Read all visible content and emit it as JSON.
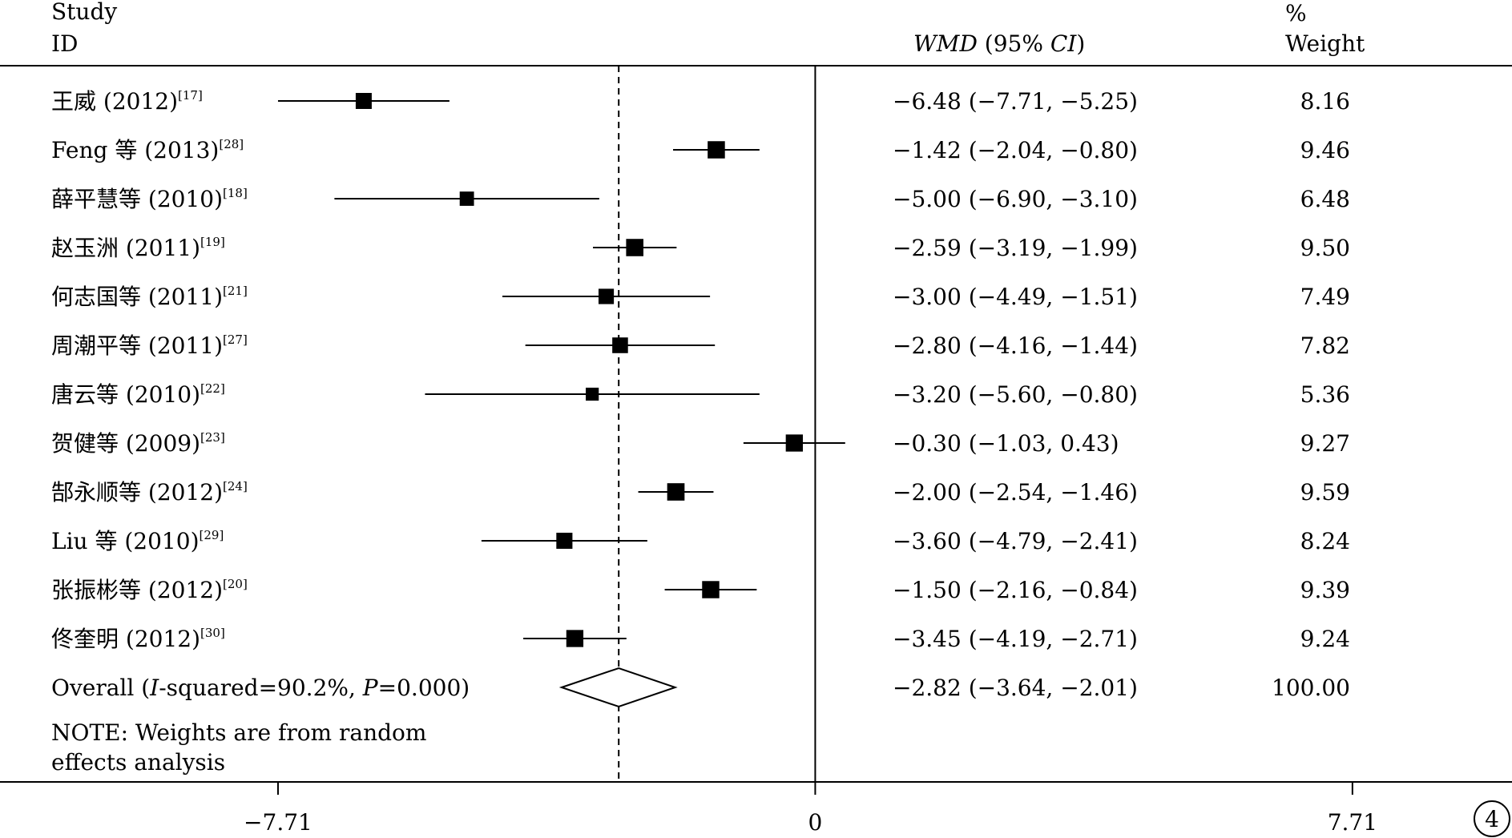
{
  "header": {
    "study_line1": "Study",
    "study_line2": "ID",
    "effect_prefix": "WMD",
    "effect_mid": " (95% ",
    "effect_ci": "CI",
    "effect_suffix": ")",
    "weight_line1": "%",
    "weight_line2": "Weight"
  },
  "note": {
    "line1": "NOTE: Weights are from random",
    "line2": "effects analysis"
  },
  "panel_number": "4",
  "chart_data": {
    "type": "forest",
    "xaxis": {
      "min": -11.7,
      "max": 10.0,
      "ticks": [
        {
          "value": -7.71,
          "label": "−7.71"
        },
        {
          "value": 0,
          "label": "0"
        },
        {
          "value": 7.71,
          "label": "7.71"
        }
      ],
      "null_line": 0,
      "overall_line": -2.82
    },
    "studies": [
      {
        "label": "王威 (2012)",
        "ref": "[17]",
        "est": -6.48,
        "lo": -7.71,
        "hi": -5.25,
        "ci_text": "−6.48 (−7.71, −5.25)",
        "weight": 8.16,
        "weight_text": "8.16"
      },
      {
        "label": "Feng 等 (2013)",
        "ref": "[28]",
        "est": -1.42,
        "lo": -2.04,
        "hi": -0.8,
        "ci_text": "−1.42 (−2.04, −0.80)",
        "weight": 9.46,
        "weight_text": "9.46"
      },
      {
        "label": "薛平慧等 (2010)",
        "ref": "[18]",
        "est": -5.0,
        "lo": -6.9,
        "hi": -3.1,
        "ci_text": "−5.00 (−6.90, −3.10)",
        "weight": 6.48,
        "weight_text": "6.48"
      },
      {
        "label": "赵玉洲 (2011)",
        "ref": "[19]",
        "est": -2.59,
        "lo": -3.19,
        "hi": -1.99,
        "ci_text": "−2.59 (−3.19, −1.99)",
        "weight": 9.5,
        "weight_text": "9.50"
      },
      {
        "label": "何志国等 (2011)",
        "ref": "[21]",
        "est": -3.0,
        "lo": -4.49,
        "hi": -1.51,
        "ci_text": "−3.00 (−4.49, −1.51)",
        "weight": 7.49,
        "weight_text": "7.49"
      },
      {
        "label": "周潮平等 (2011)",
        "ref": "[27]",
        "est": -2.8,
        "lo": -4.16,
        "hi": -1.44,
        "ci_text": "−2.80 (−4.16, −1.44)",
        "weight": 7.82,
        "weight_text": "7.82"
      },
      {
        "label": "唐云等 (2010)",
        "ref": "[22]",
        "est": -3.2,
        "lo": -5.6,
        "hi": -0.8,
        "ci_text": "−3.20 (−5.60, −0.80)",
        "weight": 5.36,
        "weight_text": "5.36"
      },
      {
        "label": "贺健等  (2009)",
        "ref": "[23]",
        "est": -0.3,
        "lo": -1.03,
        "hi": 0.43,
        "ci_text": "−0.30 (−1.03, 0.43)",
        "weight": 9.27,
        "weight_text": "9.27"
      },
      {
        "label": "郜永顺等 (2012)",
        "ref": "[24]",
        "est": -2.0,
        "lo": -2.54,
        "hi": -1.46,
        "ci_text": "−2.00 (−2.54, −1.46)",
        "weight": 9.59,
        "weight_text": "9.59"
      },
      {
        "label": "Liu 等 (2010)",
        "ref": "[29]",
        "est": -3.6,
        "lo": -4.79,
        "hi": -2.41,
        "ci_text": "−3.60 (−4.79, −2.41)",
        "weight": 8.24,
        "weight_text": "8.24"
      },
      {
        "label": "张振彬等 (2012)",
        "ref": "[20]",
        "est": -1.5,
        "lo": -2.16,
        "hi": -0.84,
        "ci_text": "−1.50 (−2.16, −0.84)",
        "weight": 9.39,
        "weight_text": "9.39"
      },
      {
        "label": "佟奎明  (2012)",
        "ref": "[30]",
        "est": -3.45,
        "lo": -4.19,
        "hi": -2.71,
        "ci_text": "−3.45 (−4.19, −2.71)",
        "weight": 9.24,
        "weight_text": "9.24"
      }
    ],
    "overall": {
      "label_start": "Overall (",
      "label_i": "I",
      "label_mid": "-squared=90.2%, ",
      "label_p": "P",
      "label_end": "=0.000)",
      "est": -2.82,
      "lo": -3.64,
      "hi": -2.01,
      "ci_text": "−2.82 (−3.64, −2.01)",
      "weight": 100.0,
      "weight_text": "100.00"
    }
  }
}
